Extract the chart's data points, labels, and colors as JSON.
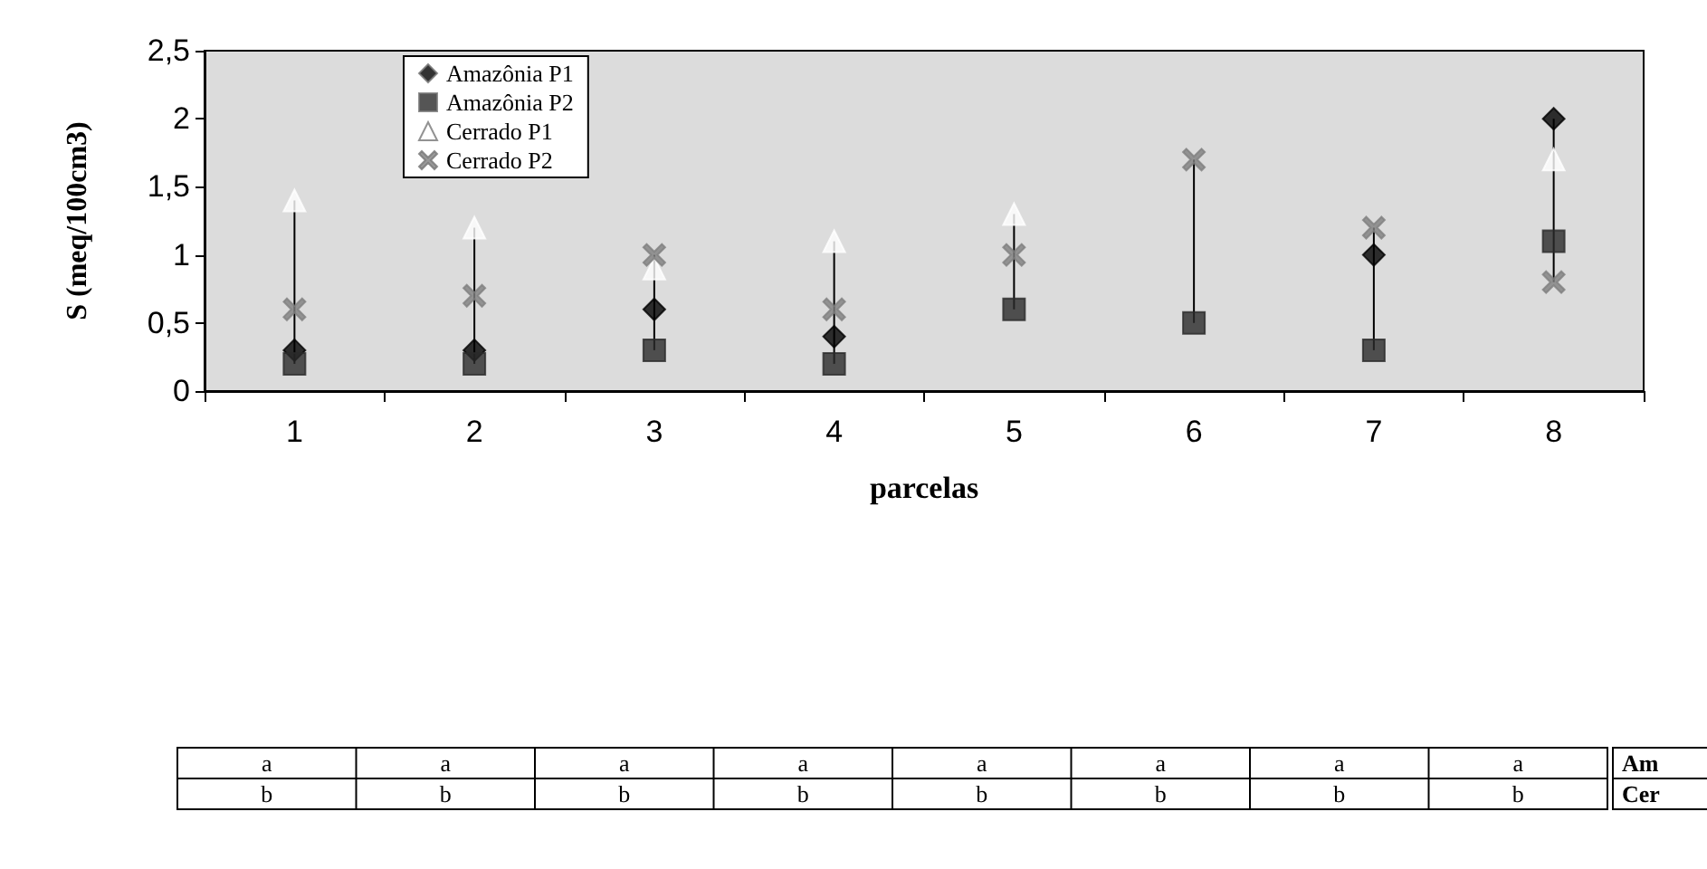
{
  "chart_data": {
    "type": "scatter",
    "xlabel": "parcelas",
    "ylabel": "S (meq/100cm3)",
    "categories": [
      "1",
      "2",
      "3",
      "4",
      "5",
      "6",
      "7",
      "8"
    ],
    "series": [
      {
        "name": "Amazônia P1",
        "color": "#000000",
        "marker": "diamond",
        "values": [
          0.3,
          0.3,
          0.6,
          0.4,
          null,
          null,
          1.0,
          2.0
        ]
      },
      {
        "name": "Amazônia P2",
        "color": "#2b2b2b",
        "marker": "square",
        "values": [
          0.2,
          0.2,
          0.3,
          0.2,
          0.6,
          0.5,
          0.3,
          1.1
        ]
      },
      {
        "name": "Cerrado P1",
        "color": "#ffffff",
        "marker": "triangle",
        "values": [
          1.4,
          1.2,
          0.9,
          1.1,
          1.3,
          null,
          null,
          1.7
        ]
      },
      {
        "name": "Cerrado P2",
        "color": "#808080",
        "marker": "cross",
        "values": [
          0.6,
          0.7,
          1.0,
          0.6,
          1.0,
          1.7,
          1.2,
          0.8
        ]
      }
    ],
    "ylim": [
      0,
      2.5
    ],
    "yticks": [
      {
        "value": 0,
        "label": "0"
      },
      {
        "value": 0.5,
        "label": "0,5"
      },
      {
        "value": 1,
        "label": "1"
      },
      {
        "value": 1.5,
        "label": "1,5"
      },
      {
        "value": 2,
        "label": "2"
      },
      {
        "value": 2.5,
        "label": "2,5"
      }
    ],
    "grid": false,
    "legend": "top left",
    "annotations": [
      "a",
      "a",
      "a",
      "a",
      "a",
      "a",
      "a",
      "a",
      "Am",
      "b",
      "b",
      "b",
      "b",
      "b",
      "b",
      "b",
      "b",
      "Cer"
    ]
  }
}
